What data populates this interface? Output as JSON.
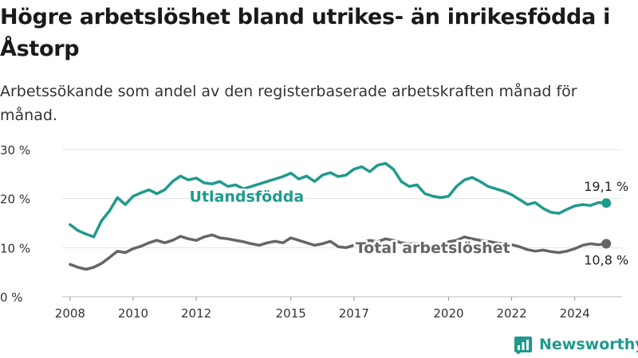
{
  "title": "Högre arbetslöshet bland utrikes- än inrikesfödda i Åstorp",
  "subtitle": "Arbetssökande som andel av den registerbaserade arbetskraften månad för månad.",
  "brand": {
    "name": "Newsworthy",
    "icon": "newsworthy-logo-icon",
    "color": "#1f9a8d"
  },
  "chart_data": {
    "type": "line",
    "ylim": [
      0,
      30
    ],
    "xlim": [
      2007.75,
      2025.5
    ],
    "grid": true,
    "y_ticks": [
      0,
      10,
      20,
      30
    ],
    "y_tick_labels": [
      "0 %",
      "10 %",
      "20 %",
      "30 %"
    ],
    "x_ticks": [
      2008,
      2010,
      2012,
      2015,
      2017,
      2020,
      2022,
      2024
    ],
    "x_tick_labels": [
      "2008",
      "2010",
      "2012",
      "2015",
      "2017",
      "2020",
      "2022",
      "2024"
    ],
    "series": [
      {
        "name": "Utlandsfödda",
        "color": "#1f9a8d",
        "end_label": "19,1 %",
        "points": [
          [
            2008.0,
            14.7
          ],
          [
            2008.25,
            13.5
          ],
          [
            2008.5,
            12.8
          ],
          [
            2008.75,
            12.2
          ],
          [
            2009.0,
            15.5
          ],
          [
            2009.25,
            17.5
          ],
          [
            2009.5,
            20.2
          ],
          [
            2009.75,
            18.8
          ],
          [
            2010.0,
            20.5
          ],
          [
            2010.25,
            21.2
          ],
          [
            2010.5,
            21.8
          ],
          [
            2010.75,
            21.0
          ],
          [
            2011.0,
            21.8
          ],
          [
            2011.25,
            23.5
          ],
          [
            2011.5,
            24.6
          ],
          [
            2011.75,
            23.8
          ],
          [
            2012.0,
            24.2
          ],
          [
            2012.25,
            23.2
          ],
          [
            2012.5,
            23.0
          ],
          [
            2012.75,
            23.5
          ],
          [
            2013.0,
            22.5
          ],
          [
            2013.25,
            22.8
          ],
          [
            2013.5,
            22.0
          ],
          [
            2013.75,
            22.5
          ],
          [
            2014.0,
            23.0
          ],
          [
            2014.25,
            23.5
          ],
          [
            2014.5,
            24.0
          ],
          [
            2014.75,
            24.5
          ],
          [
            2015.0,
            25.2
          ],
          [
            2015.25,
            24.0
          ],
          [
            2015.5,
            24.6
          ],
          [
            2015.75,
            23.5
          ],
          [
            2016.0,
            24.8
          ],
          [
            2016.25,
            25.3
          ],
          [
            2016.5,
            24.5
          ],
          [
            2016.75,
            24.8
          ],
          [
            2017.0,
            26.0
          ],
          [
            2017.25,
            26.5
          ],
          [
            2017.5,
            25.5
          ],
          [
            2017.75,
            26.8
          ],
          [
            2018.0,
            27.2
          ],
          [
            2018.25,
            26.0
          ],
          [
            2018.5,
            23.5
          ],
          [
            2018.75,
            22.5
          ],
          [
            2019.0,
            22.8
          ],
          [
            2019.25,
            21.0
          ],
          [
            2019.5,
            20.5
          ],
          [
            2019.75,
            20.2
          ],
          [
            2020.0,
            20.5
          ],
          [
            2020.25,
            22.5
          ],
          [
            2020.5,
            23.8
          ],
          [
            2020.75,
            24.3
          ],
          [
            2021.0,
            23.5
          ],
          [
            2021.25,
            22.5
          ],
          [
            2021.5,
            22.0
          ],
          [
            2021.75,
            21.5
          ],
          [
            2022.0,
            20.8
          ],
          [
            2022.25,
            19.8
          ],
          [
            2022.5,
            18.8
          ],
          [
            2022.75,
            19.2
          ],
          [
            2023.0,
            18.0
          ],
          [
            2023.25,
            17.2
          ],
          [
            2023.5,
            17.0
          ],
          [
            2023.75,
            17.8
          ],
          [
            2024.0,
            18.5
          ],
          [
            2024.25,
            18.8
          ],
          [
            2024.5,
            18.6
          ],
          [
            2024.75,
            19.2
          ],
          [
            2025.0,
            19.1
          ]
        ]
      },
      {
        "name": "Total arbetslöshet",
        "color": "#646469",
        "end_label": "10,8 %",
        "points": [
          [
            2008.0,
            6.6
          ],
          [
            2008.25,
            6.0
          ],
          [
            2008.5,
            5.6
          ],
          [
            2008.75,
            6.0
          ],
          [
            2009.0,
            6.8
          ],
          [
            2009.25,
            8.0
          ],
          [
            2009.5,
            9.3
          ],
          [
            2009.75,
            9.0
          ],
          [
            2010.0,
            9.8
          ],
          [
            2010.25,
            10.3
          ],
          [
            2010.5,
            11.0
          ],
          [
            2010.75,
            11.5
          ],
          [
            2011.0,
            11.0
          ],
          [
            2011.25,
            11.5
          ],
          [
            2011.5,
            12.3
          ],
          [
            2011.75,
            11.8
          ],
          [
            2012.0,
            11.5
          ],
          [
            2012.25,
            12.2
          ],
          [
            2012.5,
            12.6
          ],
          [
            2012.75,
            12.0
          ],
          [
            2013.0,
            11.8
          ],
          [
            2013.25,
            11.5
          ],
          [
            2013.5,
            11.2
          ],
          [
            2013.75,
            10.8
          ],
          [
            2014.0,
            10.5
          ],
          [
            2014.25,
            11.0
          ],
          [
            2014.5,
            11.3
          ],
          [
            2014.75,
            11.0
          ],
          [
            2015.0,
            12.0
          ],
          [
            2015.25,
            11.5
          ],
          [
            2015.5,
            11.0
          ],
          [
            2015.75,
            10.5
          ],
          [
            2016.0,
            10.8
          ],
          [
            2016.25,
            11.3
          ],
          [
            2016.5,
            10.2
          ],
          [
            2016.75,
            10.0
          ],
          [
            2017.0,
            10.5
          ],
          [
            2017.25,
            11.0
          ],
          [
            2017.5,
            11.5
          ],
          [
            2017.75,
            11.2
          ],
          [
            2018.0,
            11.8
          ],
          [
            2018.25,
            11.5
          ],
          [
            2018.5,
            11.0
          ],
          [
            2018.75,
            10.8
          ],
          [
            2019.0,
            10.8
          ],
          [
            2019.25,
            10.5
          ],
          [
            2019.5,
            10.3
          ],
          [
            2019.75,
            10.5
          ],
          [
            2020.0,
            11.2
          ],
          [
            2020.25,
            11.5
          ],
          [
            2020.5,
            12.2
          ],
          [
            2020.75,
            11.8
          ],
          [
            2021.0,
            11.5
          ],
          [
            2021.25,
            11.3
          ],
          [
            2021.5,
            11.0
          ],
          [
            2021.75,
            10.8
          ],
          [
            2022.0,
            10.6
          ],
          [
            2022.25,
            10.2
          ],
          [
            2022.5,
            9.6
          ],
          [
            2022.75,
            9.3
          ],
          [
            2023.0,
            9.5
          ],
          [
            2023.25,
            9.2
          ],
          [
            2023.5,
            9.0
          ],
          [
            2023.75,
            9.3
          ],
          [
            2024.0,
            9.8
          ],
          [
            2024.25,
            10.5
          ],
          [
            2024.5,
            10.8
          ],
          [
            2024.75,
            10.6
          ],
          [
            2025.0,
            10.8
          ]
        ]
      }
    ]
  }
}
